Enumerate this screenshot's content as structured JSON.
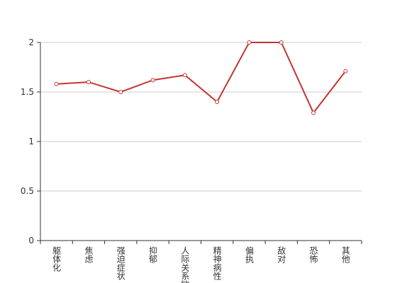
{
  "chart_data": {
    "type": "line",
    "categories": [
      "躯体化",
      "焦虑",
      "强迫症状",
      "抑郁",
      "人际关系敏感",
      "精神病性",
      "偏执",
      "敌对",
      "恐怖",
      "其他"
    ],
    "values": [
      1.58,
      1.6,
      1.5,
      1.62,
      1.67,
      1.4,
      2,
      2,
      1.29,
      1.71
    ],
    "color": "#c23531",
    "ylim": [
      0,
      2
    ],
    "yticks": [
      0,
      0.5,
      1,
      1.5,
      2
    ],
    "grid": true
  }
}
